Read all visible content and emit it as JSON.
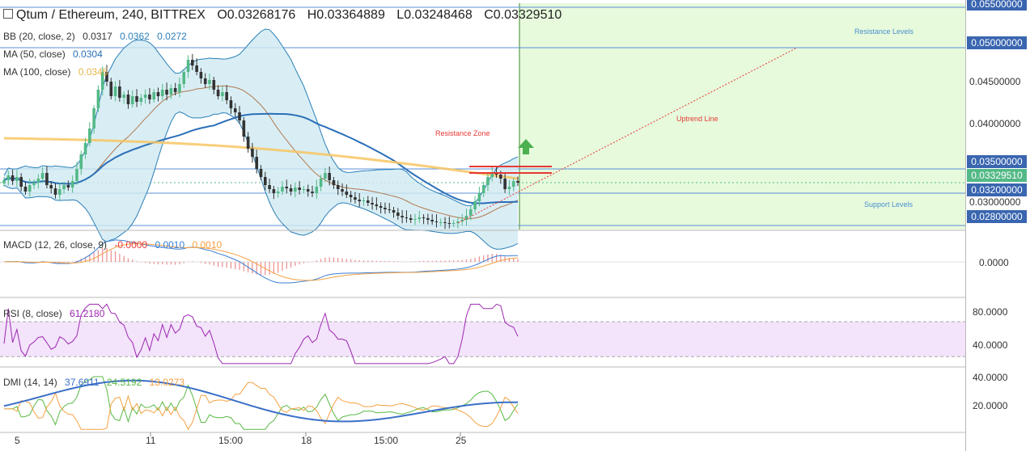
{
  "header": {
    "title": "Qtum / Ethereum, 240, BITTREX",
    "open": "O0.03268176",
    "high": "H0.03364889",
    "low": "L0.03248468",
    "close": "C0.03329510"
  },
  "indicators": {
    "bb": {
      "label": "BB (20, close, 2)",
      "v1": "0.0317",
      "v2": "0.0362",
      "v3": "0.0272"
    },
    "ma50": {
      "label": "MA (50, close)",
      "v": "0.0304"
    },
    "ma100": {
      "label": "MA (100, close)",
      "v": "0.0345"
    },
    "macd": {
      "label": "MACD (12, 26, close, 9)",
      "v1": "-0.0000",
      "v2": "0.0010",
      "v3": "0.0010"
    },
    "rsi": {
      "label": "RSI (8, close)",
      "v": "61.2180"
    },
    "dmi": {
      "label": "DMI (14, 14)",
      "v1": "37.6911",
      "v2": "24.5192",
      "v3": "13.0273"
    }
  },
  "annotations": {
    "resistance_levels": "Resistance Levels",
    "resistance_zone": "Resistance Zone",
    "uptrend_line": "Uptrend Line",
    "support_levels": "Support Levels"
  },
  "price_axis": {
    "ticks": [
      "0.05500000",
      "0.05000000",
      "0.04500000",
      "0.04000000",
      "0.03500000",
      "0.03329510",
      "0.03200000",
      "0.03000000",
      "0.02800000"
    ],
    "current_price": "0.03329510"
  },
  "macd_axis": {
    "ticks": [
      "0.0000"
    ]
  },
  "rsi_axis": {
    "ticks": [
      "80.0000",
      "40.0000"
    ]
  },
  "dmi_axis": {
    "ticks": [
      "40.0000",
      "20.0000"
    ]
  },
  "x_axis": {
    "ticks": [
      "5",
      "11",
      "15:00",
      "18",
      "15:00",
      "25"
    ]
  },
  "colors": {
    "up": "#53b987",
    "down": "#eb4d5c",
    "candle_dark": "#333333",
    "bb_fill": "#cfeaf1",
    "bb_line": "#2b7fb8",
    "ma50": "#2a6fb8",
    "ma100": "#f7c563",
    "green_zone": "#e7fadc",
    "resistance": "#e53935",
    "support_tag": "#3a66b0",
    "rsi_band": "#f3e3fb",
    "rsi_line": "#9c27b0",
    "macd_line": "#3a7fd5",
    "signal_line": "#f5a142",
    "dmi_adx": "#3a6fc8",
    "dmi_plus": "#5ab845",
    "dmi_minus": "#f5a142"
  },
  "chart_data": {
    "type": "candlestick",
    "symbol": "Qtum / Ethereum",
    "interval": "240",
    "exchange": "BITTREX",
    "price_range": [
      0.0275,
      0.0555
    ],
    "horizontal_levels": [
      0.055,
      0.05,
      0.035,
      0.032,
      0.028
    ],
    "resistance_zone": [
      0.0345,
      0.0353
    ],
    "current_close": 0.0332951,
    "ma100_last": 0.0345,
    "ma50_last": 0.0304,
    "bb_last": [
      0.0317,
      0.0362,
      0.0272
    ],
    "macd_last": {
      "hist": -0.0,
      "macd": 0.001,
      "signal": 0.001
    },
    "rsi_last": 61.218,
    "rsi_range": [
      20,
      95
    ],
    "dmi_last": {
      "adx": 37.6911,
      "plus_di": 24.5192,
      "minus_di": 13.0273
    },
    "dmi_range": [
      5,
      47
    ],
    "closes": [
      0.0336,
      0.0342,
      0.0335,
      0.034,
      0.0328,
      0.0322,
      0.033,
      0.0333,
      0.0338,
      0.0345,
      0.033,
      0.0326,
      0.0318,
      0.0325,
      0.033,
      0.0327,
      0.0335,
      0.035,
      0.0368,
      0.0382,
      0.04,
      0.0425,
      0.0448,
      0.047,
      0.0458,
      0.044,
      0.0452,
      0.0438,
      0.0442,
      0.043,
      0.044,
      0.0433,
      0.0438,
      0.0442,
      0.0436,
      0.0445,
      0.044,
      0.0448,
      0.0442,
      0.045,
      0.0445,
      0.0455,
      0.047,
      0.0485,
      0.0478,
      0.047,
      0.0462,
      0.0455,
      0.046,
      0.0448,
      0.044,
      0.0445,
      0.0435,
      0.0425,
      0.042,
      0.041,
      0.039,
      0.0375,
      0.0365,
      0.035,
      0.034,
      0.033,
      0.0325,
      0.032,
      0.0322,
      0.0328,
      0.0326,
      0.0322,
      0.0327,
      0.0324,
      0.0325,
      0.0322,
      0.032,
      0.0328,
      0.0338,
      0.0345,
      0.0336,
      0.033,
      0.0325,
      0.0322,
      0.0318,
      0.0315,
      0.0312,
      0.031,
      0.0311,
      0.0308,
      0.0306,
      0.0304,
      0.0302,
      0.03,
      0.0299,
      0.0296,
      0.0292,
      0.029,
      0.0289,
      0.0287,
      0.0288,
      0.029,
      0.0289,
      0.0287,
      0.0285,
      0.0284,
      0.0284,
      0.0283,
      0.0282,
      0.0283,
      0.0285,
      0.0287,
      0.0292,
      0.03,
      0.031,
      0.032,
      0.033,
      0.034,
      0.0345,
      0.0343,
      0.0338,
      0.0325,
      0.0328,
      0.0335,
      0.0333
    ]
  }
}
